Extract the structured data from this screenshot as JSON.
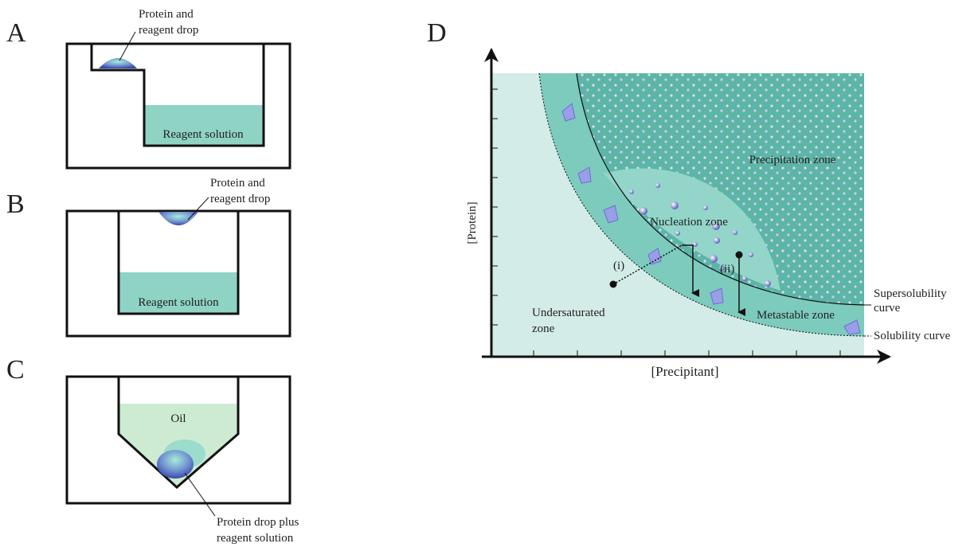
{
  "panel_a": {
    "label": "A",
    "drop_label_line1": "Protein and",
    "drop_label_line2": "reagent drop",
    "solution_label": "Reagent solution"
  },
  "panel_b": {
    "label": "B",
    "drop_label_line1": "Protein and",
    "drop_label_line2": "reagent drop",
    "solution_label": "Reagent solution"
  },
  "panel_c": {
    "label": "C",
    "oil_label": "Oil",
    "drop_label_line1": "Protein drop plus",
    "drop_label_line2": "reagent solution"
  },
  "panel_d": {
    "label": "D",
    "y_axis_label": "[Protein]",
    "x_axis_label": "[Precipitant]",
    "zones": {
      "precipitation": "Precipitation zone",
      "nucleation": "Nucleation zone",
      "undersaturated_line1": "Undersaturated",
      "undersaturated_line2": "zone",
      "metastable": "Metastable zone"
    },
    "paths": {
      "i": "(i)",
      "ii": "(ii)"
    },
    "curves": {
      "supersolubility_line1": "Supersolubility",
      "supersolubility_line2": "curve",
      "solubility": "Solubility curve"
    }
  }
}
